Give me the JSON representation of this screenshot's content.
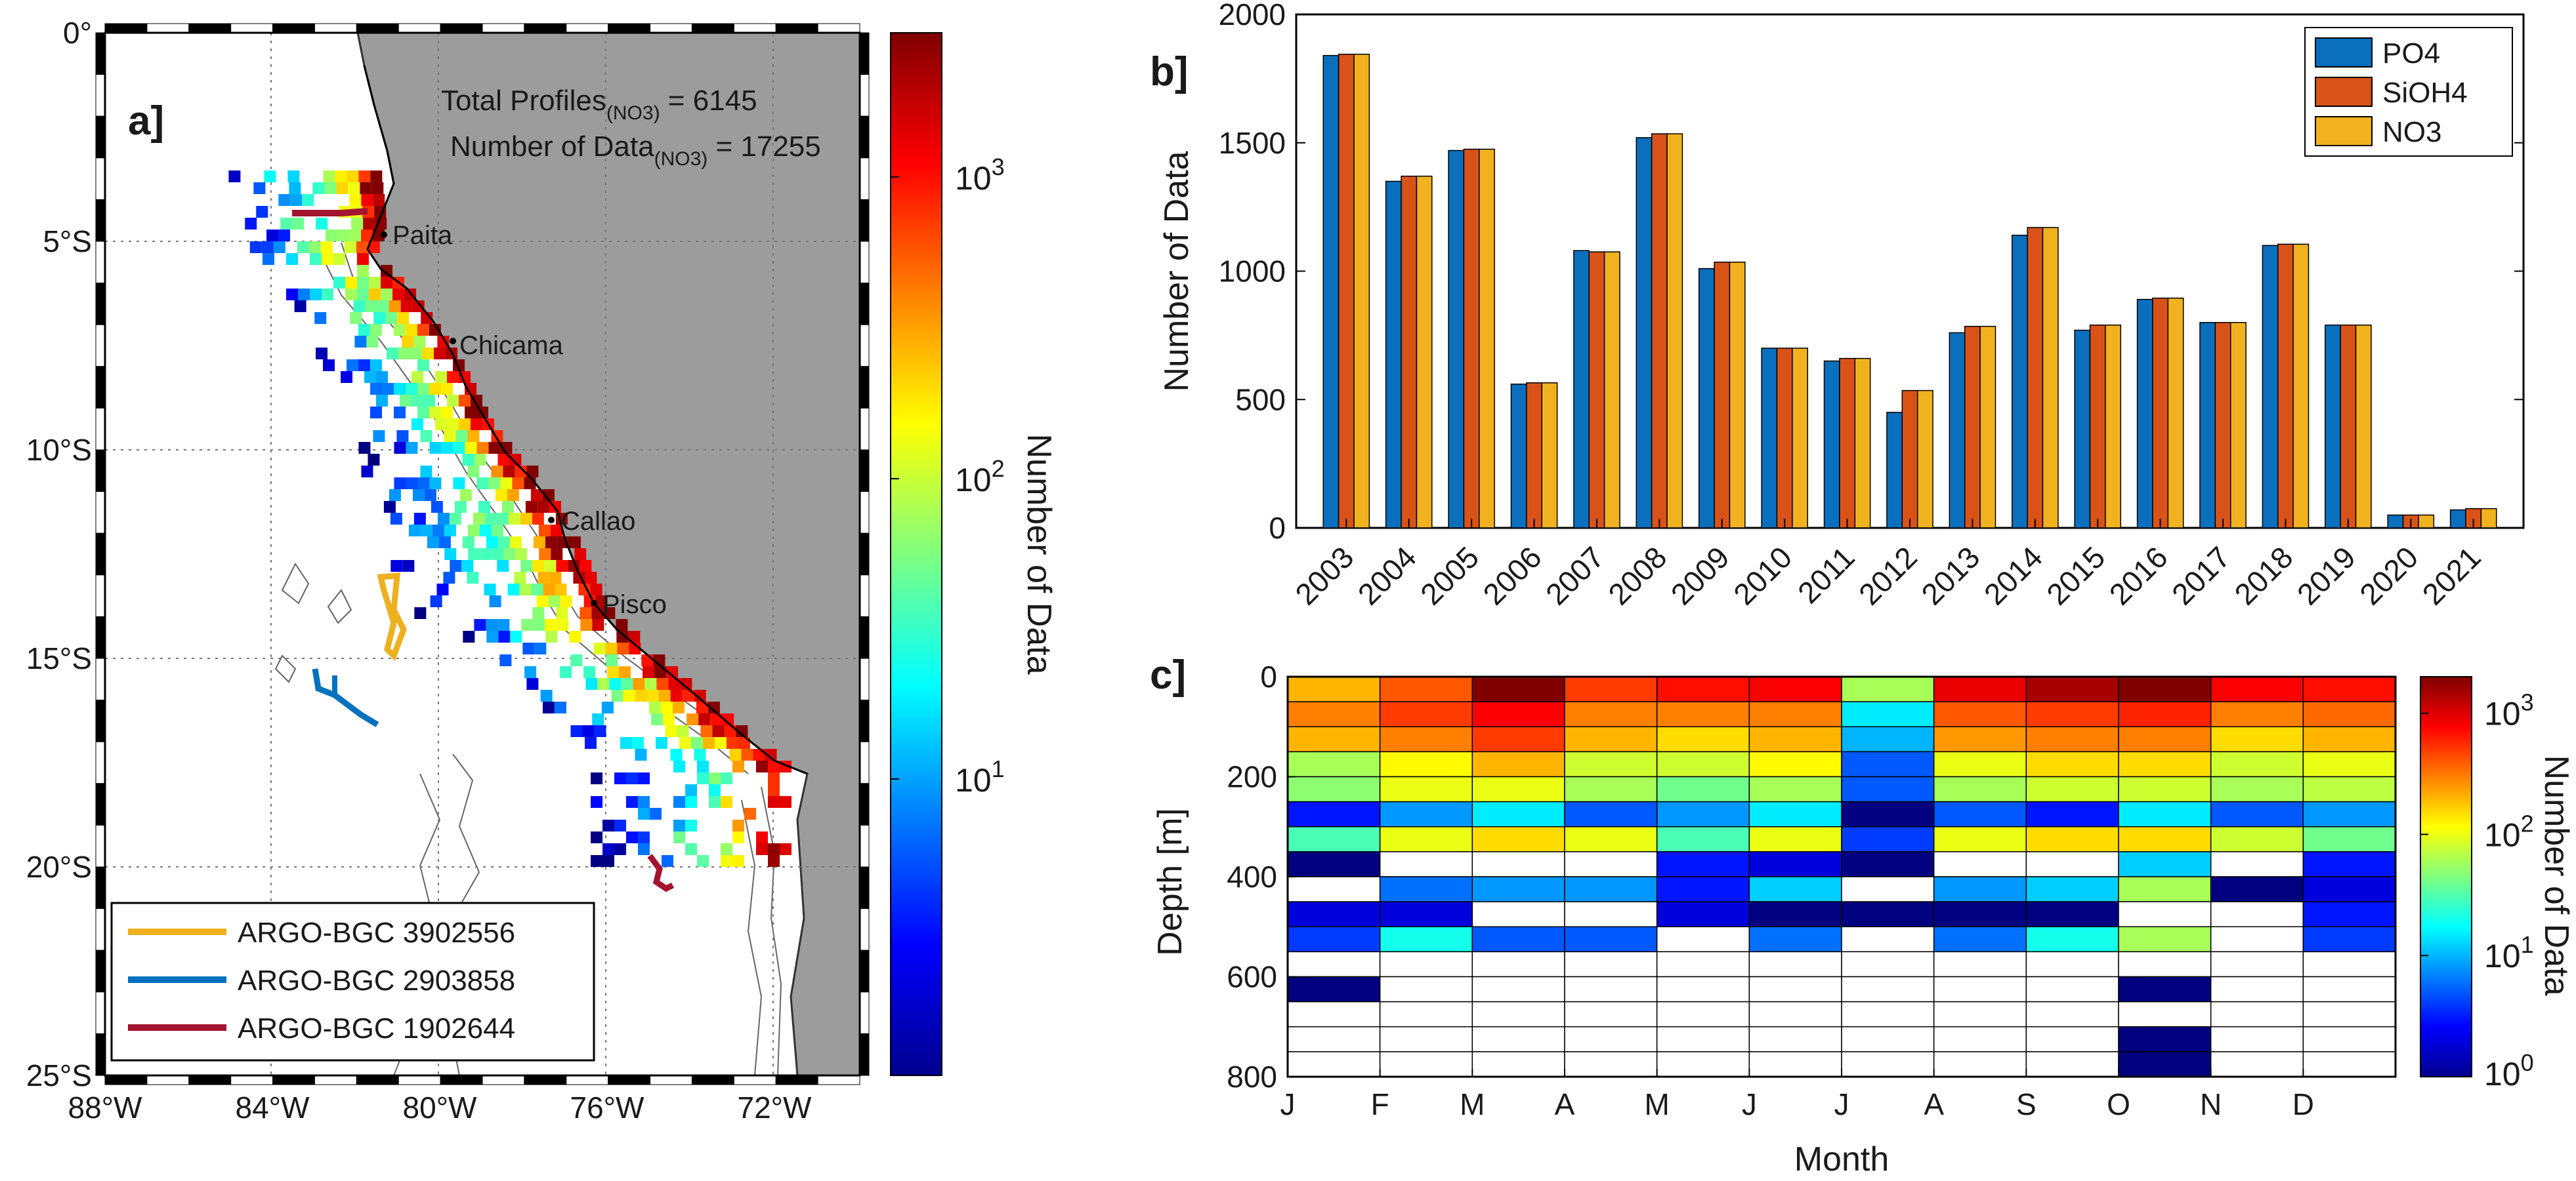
{
  "colors": {
    "po4": "#0a6fbd",
    "sioh4": "#d95319",
    "no3": "#f1b21f",
    "land": "#9c9c9c",
    "argo_3902556": "#edb120",
    "argo_2903858": "#0072bd",
    "argo_1902644": "#a2142f"
  },
  "panel_a": {
    "label": "a]",
    "x_ticks": [
      "88°W",
      "84°W",
      "80°W",
      "76°W",
      "72°W"
    ],
    "y_ticks": [
      "0°",
      "5°S",
      "10°S",
      "15°S",
      "20°S",
      "25°S"
    ],
    "annotation_line1": "Total Profiles",
    "annotation_sub1": "(NO3)",
    "annotation_val1": " = 6145",
    "annotation_line2": "Number of Data",
    "annotation_sub2": "(NO3)",
    "annotation_val2": " = 17255",
    "cities": [
      "Paita",
      "Chicama",
      "Callao",
      "Pisco"
    ],
    "legend": [
      "ARGO-BGC 3902556",
      "ARGO-BGC 2903858",
      "ARGO-BGC 1902644"
    ],
    "colorbar_label": "Number of Data",
    "colorbar_ticks": [
      "10",
      "10",
      "10"
    ],
    "colorbar_exps": [
      "1",
      "2",
      "3"
    ]
  },
  "chart_data": [
    {
      "type": "bar",
      "title": "",
      "label": "b]",
      "categories": [
        "2003",
        "2004",
        "2005",
        "2006",
        "2007",
        "2008",
        "2009",
        "2010",
        "2011",
        "2012",
        "2013",
        "2014",
        "2015",
        "2016",
        "2017",
        "2018",
        "2019",
        "2020",
        "2021"
      ],
      "series": [
        {
          "name": "PO4",
          "values": [
            1840,
            1350,
            1470,
            560,
            1080,
            1520,
            1010,
            700,
            650,
            450,
            760,
            1140,
            770,
            890,
            800,
            1100,
            790,
            50,
            70
          ]
        },
        {
          "name": "SiOH4",
          "values": [
            1845,
            1370,
            1475,
            565,
            1075,
            1535,
            1035,
            700,
            660,
            535,
            785,
            1170,
            790,
            895,
            800,
            1105,
            790,
            50,
            75
          ]
        },
        {
          "name": "NO3",
          "values": [
            1845,
            1370,
            1475,
            565,
            1075,
            1535,
            1035,
            700,
            660,
            535,
            785,
            1170,
            790,
            895,
            800,
            1105,
            790,
            50,
            75
          ]
        }
      ],
      "xlabel": "",
      "ylabel": "Number of Data",
      "ylim": [
        0,
        2000
      ],
      "y_ticks": [
        "0",
        "500",
        "1000",
        "1500",
        "2000"
      ],
      "legend_position": "top-right"
    },
    {
      "type": "heatmap",
      "label": "c]",
      "x_categories": [
        "J",
        "F",
        "M",
        "A",
        "M",
        "J",
        "J",
        "A",
        "S",
        "O",
        "N",
        "D"
      ],
      "y_ticks": [
        "0",
        "200",
        "400",
        "600",
        "800"
      ],
      "xlabel": "Month",
      "ylabel": "Depth [m]",
      "ylim": [
        0,
        800
      ],
      "depth_bins": [
        0,
        50,
        100,
        150,
        200,
        250,
        300,
        350,
        400,
        450,
        500,
        550,
        600,
        650,
        700,
        750
      ],
      "values": [
        [
          200,
          400,
          2000,
          500,
          700,
          800,
          60,
          900,
          1500,
          2000,
          800,
          700
        ],
        [
          300,
          500,
          800,
          300,
          300,
          300,
          15,
          400,
          500,
          600,
          300,
          350
        ],
        [
          200,
          300,
          500,
          200,
          150,
          200,
          10,
          250,
          300,
          300,
          150,
          200
        ],
        [
          60,
          120,
          200,
          80,
          80,
          120,
          5,
          100,
          150,
          150,
          80,
          100
        ],
        [
          50,
          100,
          100,
          60,
          40,
          60,
          5,
          60,
          80,
          80,
          60,
          70
        ],
        [
          3,
          8,
          15,
          5,
          8,
          15,
          1,
          5,
          3,
          15,
          5,
          8
        ],
        [
          30,
          100,
          150,
          100,
          30,
          100,
          4,
          100,
          150,
          150,
          80,
          40
        ],
        [
          1,
          null,
          null,
          null,
          3,
          2,
          1,
          null,
          null,
          12,
          null,
          3
        ],
        [
          null,
          6,
          8,
          8,
          3,
          12,
          null,
          8,
          12,
          60,
          1,
          2
        ],
        [
          2,
          2,
          null,
          null,
          2,
          1,
          1,
          1,
          1,
          null,
          null,
          3
        ],
        [
          4,
          20,
          5,
          5,
          null,
          6,
          null,
          6,
          20,
          60,
          null,
          4
        ],
        [
          null,
          null,
          null,
          null,
          null,
          null,
          null,
          null,
          null,
          null,
          null,
          null
        ],
        [
          1,
          null,
          null,
          null,
          null,
          null,
          null,
          null,
          null,
          1,
          null,
          null
        ],
        [
          null,
          null,
          null,
          null,
          null,
          null,
          null,
          null,
          null,
          null,
          null,
          null
        ],
        [
          null,
          null,
          null,
          null,
          null,
          null,
          null,
          null,
          null,
          1,
          null,
          null
        ],
        [
          null,
          null,
          null,
          null,
          null,
          null,
          null,
          null,
          null,
          1,
          null,
          null
        ]
      ],
      "colorbar_label": "Number of Data",
      "colorbar_ticks": [
        "10",
        "10",
        "10",
        "10"
      ],
      "colorbar_exps": [
        "0",
        "1",
        "2",
        "3"
      ]
    }
  ]
}
